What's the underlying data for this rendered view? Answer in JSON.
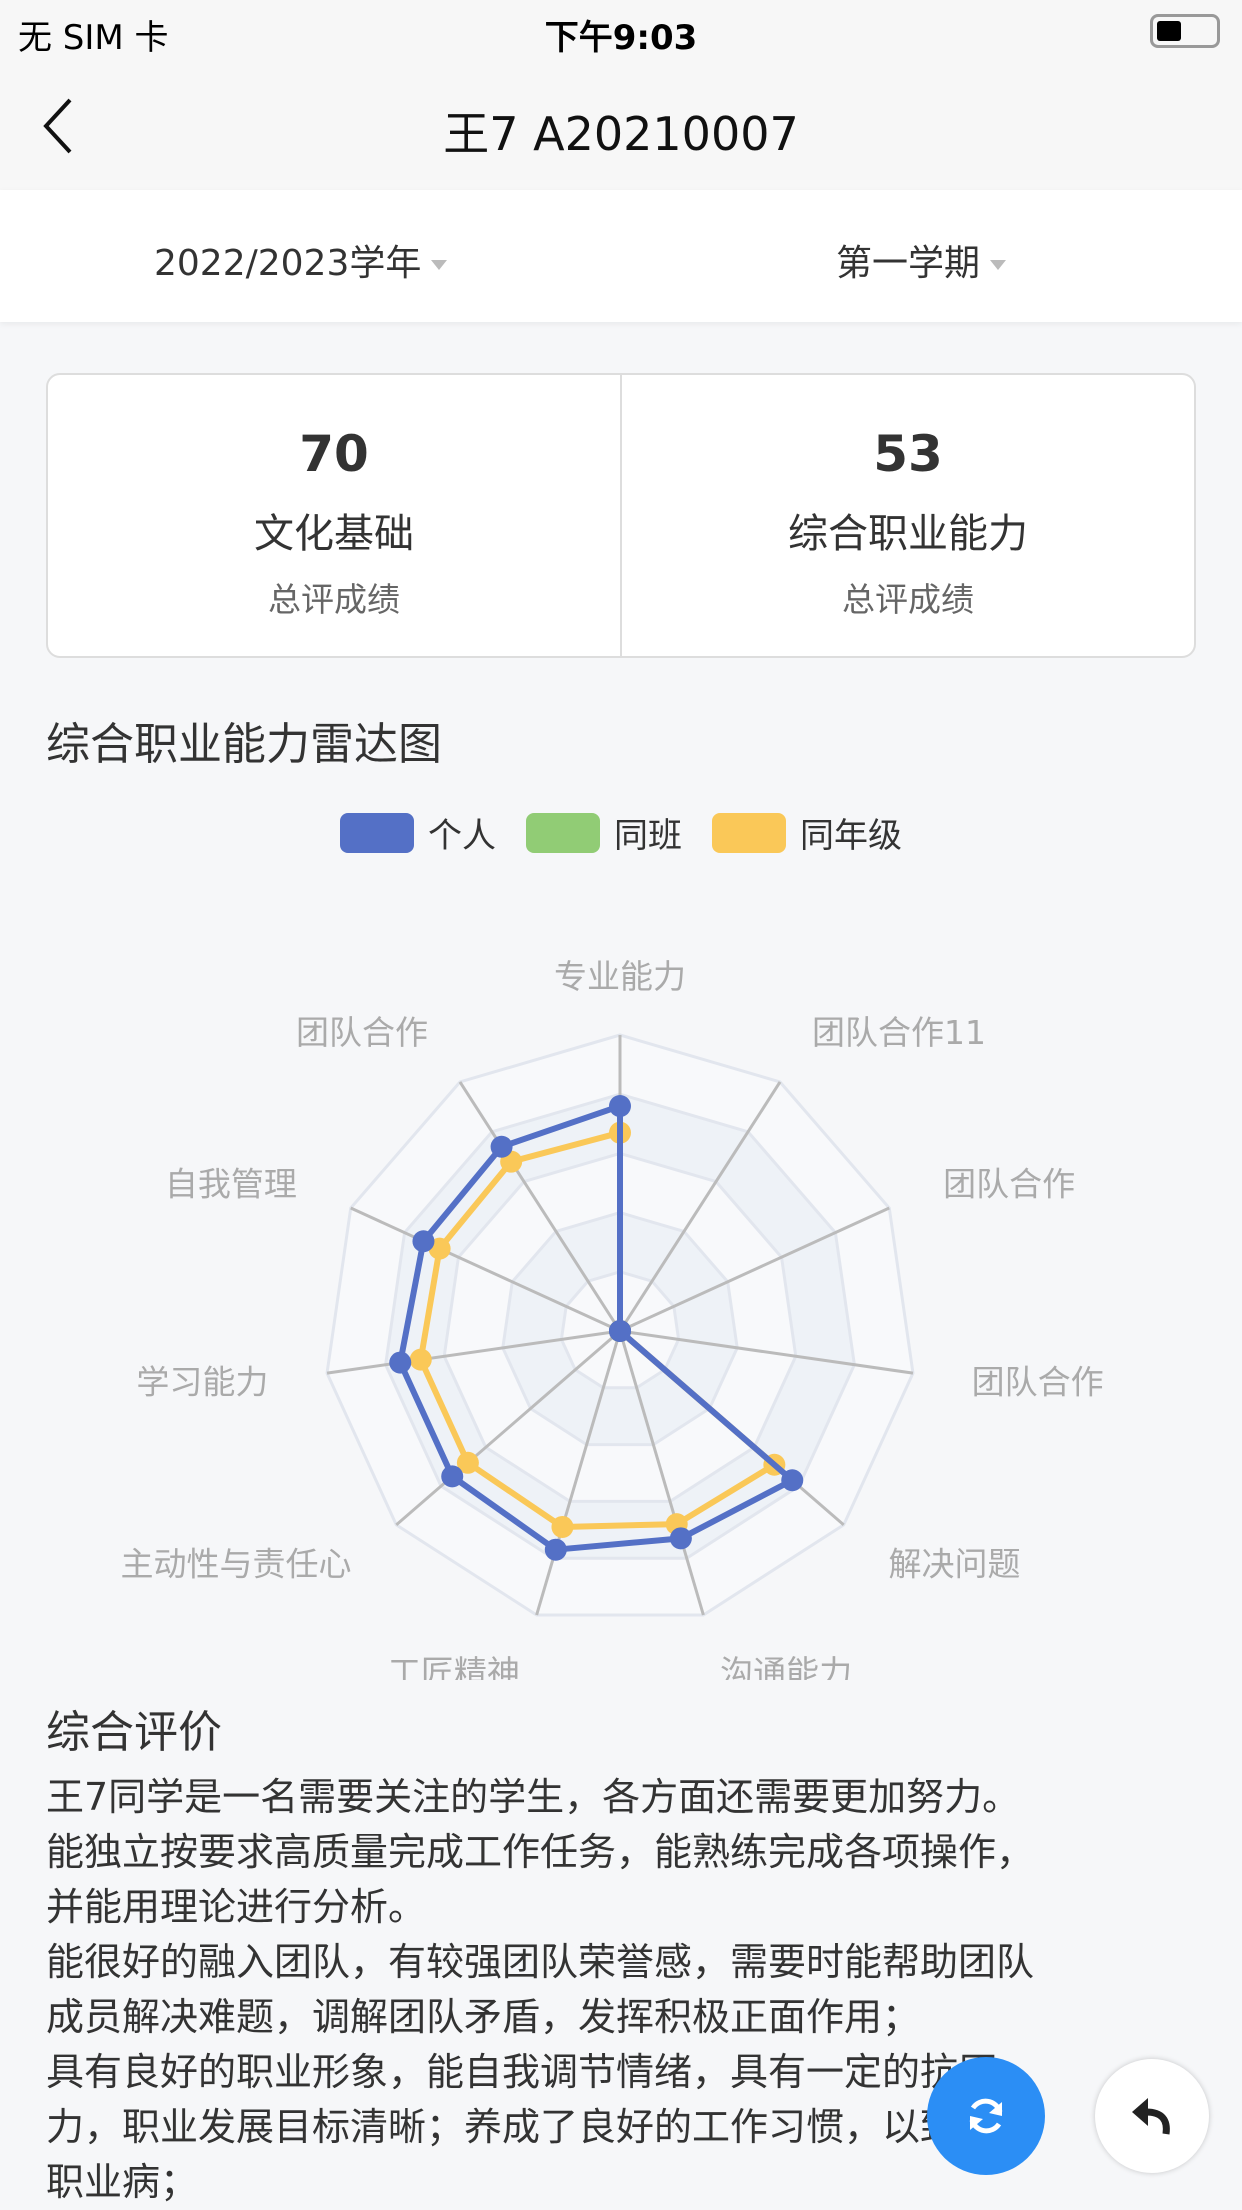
{
  "status_bar": {
    "carrier": "无 SIM 卡",
    "time": "下午9:03"
  },
  "nav": {
    "title": "王7 A20210007"
  },
  "filters": {
    "year": "2022/2023学年",
    "term": "第一学期"
  },
  "scores": [
    {
      "value": "70",
      "label": "文化基础",
      "sub": "总评成绩"
    },
    {
      "value": "53",
      "label": "综合职业能力",
      "sub": "总评成绩"
    }
  ],
  "radar_title": "综合职业能力雷达图",
  "chart_data": {
    "type": "radar",
    "indicators": [
      "专业能力",
      "团队合作11",
      "团队合作",
      "团队合作",
      "解决问题",
      "沟通能力",
      "工匠精神",
      "主动性与责任心",
      "学习能力",
      "自我管理",
      "团队合作"
    ],
    "max": 100,
    "series": [
      {
        "name": "个人",
        "color": "#5470c6",
        "values": [
          76,
          0,
          0,
          0,
          77,
          73,
          77,
          75,
          75,
          73,
          74
        ]
      },
      {
        "name": "同班",
        "color": "#91cc75",
        "values": [
          0,
          0,
          0,
          0,
          0,
          0,
          0,
          0,
          0,
          0,
          0
        ]
      },
      {
        "name": "同年级",
        "color": "#fac858",
        "values": [
          67,
          0,
          0,
          0,
          69,
          68,
          69,
          68,
          68,
          67,
          68
        ]
      }
    ],
    "legend_position": "top"
  },
  "evaluation": {
    "title": "综合评价",
    "lines": [
      "王7同学是一名需要关注的学生，各方面还需要更加努力。",
      "能独立按要求高质量完成工作任务，能熟练完成各项操作，",
      "并能用理论进行分析。",
      "能很好的融入团队，有较强团队荣誉感，需要时能帮助团队",
      "成员解决难题，调解团队矛盾，发挥积极正面作用；",
      "具有良好的职业形象，能自我调节情绪，具有一定的抗压",
      "力，职业发展目标清晰；养成了良好的工作习惯，以致预防",
      "职业病；"
    ]
  },
  "icons": {
    "back": "chevron-left-icon",
    "refresh": "refresh-icon",
    "reply": "reply-icon"
  }
}
